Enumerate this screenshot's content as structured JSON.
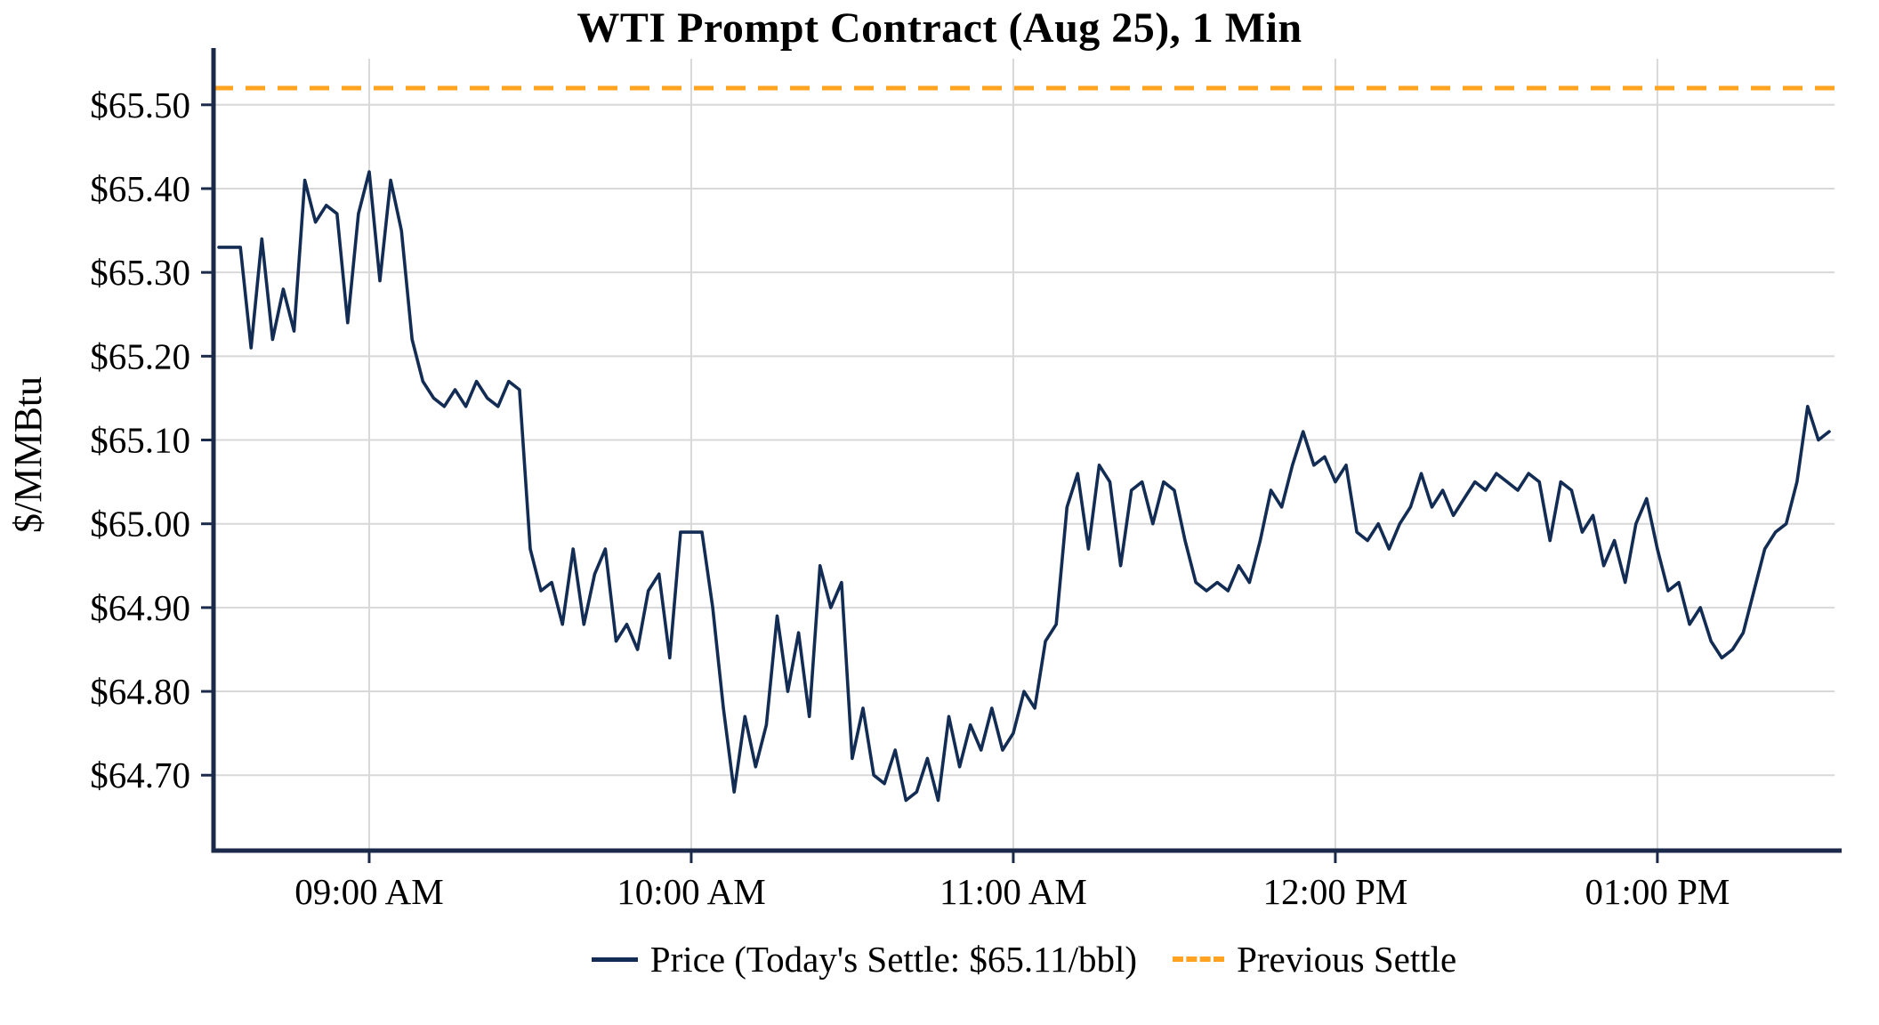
{
  "title": "WTI Prompt Contract (Aug 25), 1 Min",
  "legend": {
    "price": "Price (Today's Settle: $65.11/bbl)",
    "previous_settle": "Previous Settle"
  },
  "colors": {
    "price_line": "#132c54",
    "previous_settle_line": "#ffa320",
    "grid": "#d8d8d8",
    "axis": "#1b2a4a",
    "text": "#000000"
  },
  "chart_data": {
    "type": "line",
    "title": "WTI Prompt Contract (Aug 25), 1 Min",
    "xlabel": "",
    "ylabel": "$/MMBtu",
    "grid": true,
    "legend_position": "bottom",
    "previous_settle": 65.52,
    "todays_settle": 65.11,
    "x_start": "08:32",
    "x_interval_minutes": 2,
    "x_domain": [
      "08:31",
      "13:33"
    ],
    "y_domain": [
      64.61,
      65.555
    ],
    "x_ticks": [
      {
        "time": "09:00",
        "label": "09:00 AM"
      },
      {
        "time": "10:00",
        "label": "10:00 AM"
      },
      {
        "time": "11:00",
        "label": "11:00 AM"
      },
      {
        "time": "12:00",
        "label": "12:00 PM"
      },
      {
        "time": "13:00",
        "label": "01:00 PM"
      }
    ],
    "y_ticks": [
      {
        "value": 64.7,
        "label": "$64.70"
      },
      {
        "value": 64.8,
        "label": "$64.80"
      },
      {
        "value": 64.9,
        "label": "$64.90"
      },
      {
        "value": 65.0,
        "label": "$65.00"
      },
      {
        "value": 65.1,
        "label": "$65.10"
      },
      {
        "value": 65.2,
        "label": "$65.20"
      },
      {
        "value": 65.3,
        "label": "$65.30"
      },
      {
        "value": 65.4,
        "label": "$65.40"
      },
      {
        "value": 65.5,
        "label": "$65.50"
      }
    ],
    "series": [
      {
        "name": "Price",
        "values": [
          65.33,
          65.33,
          65.33,
          65.21,
          65.34,
          65.22,
          65.28,
          65.23,
          65.41,
          65.36,
          65.38,
          65.37,
          65.24,
          65.37,
          65.42,
          65.29,
          65.41,
          65.35,
          65.22,
          65.17,
          65.15,
          65.14,
          65.16,
          65.14,
          65.17,
          65.15,
          65.14,
          65.17,
          65.16,
          64.97,
          64.92,
          64.93,
          64.88,
          64.97,
          64.88,
          64.94,
          64.97,
          64.86,
          64.88,
          64.85,
          64.92,
          64.94,
          64.84,
          64.99,
          64.99,
          64.99,
          64.9,
          64.78,
          64.68,
          64.77,
          64.71,
          64.76,
          64.89,
          64.8,
          64.87,
          64.77,
          64.95,
          64.9,
          64.93,
          64.72,
          64.78,
          64.7,
          64.69,
          64.73,
          64.67,
          64.68,
          64.72,
          64.67,
          64.77,
          64.71,
          64.76,
          64.73,
          64.78,
          64.73,
          64.75,
          64.8,
          64.78,
          64.86,
          64.88,
          65.02,
          65.06,
          64.97,
          65.07,
          65.05,
          64.95,
          65.04,
          65.05,
          65.0,
          65.05,
          65.04,
          64.98,
          64.93,
          64.92,
          64.93,
          64.92,
          64.95,
          64.93,
          64.98,
          65.04,
          65.02,
          65.07,
          65.11,
          65.07,
          65.08,
          65.05,
          65.07,
          64.99,
          64.98,
          65.0,
          64.97,
          65.0,
          65.02,
          65.06,
          65.02,
          65.04,
          65.01,
          65.03,
          65.05,
          65.04,
          65.06,
          65.05,
          65.04,
          65.06,
          65.05,
          64.98,
          65.05,
          65.04,
          64.99,
          65.01,
          64.95,
          64.98,
          64.93,
          65.0,
          65.03,
          64.97,
          64.92,
          64.93,
          64.88,
          64.9,
          64.86,
          64.84,
          64.85,
          64.87,
          64.92,
          64.97,
          64.99,
          65.0,
          65.05,
          65.14,
          65.1,
          65.11
        ]
      }
    ]
  }
}
